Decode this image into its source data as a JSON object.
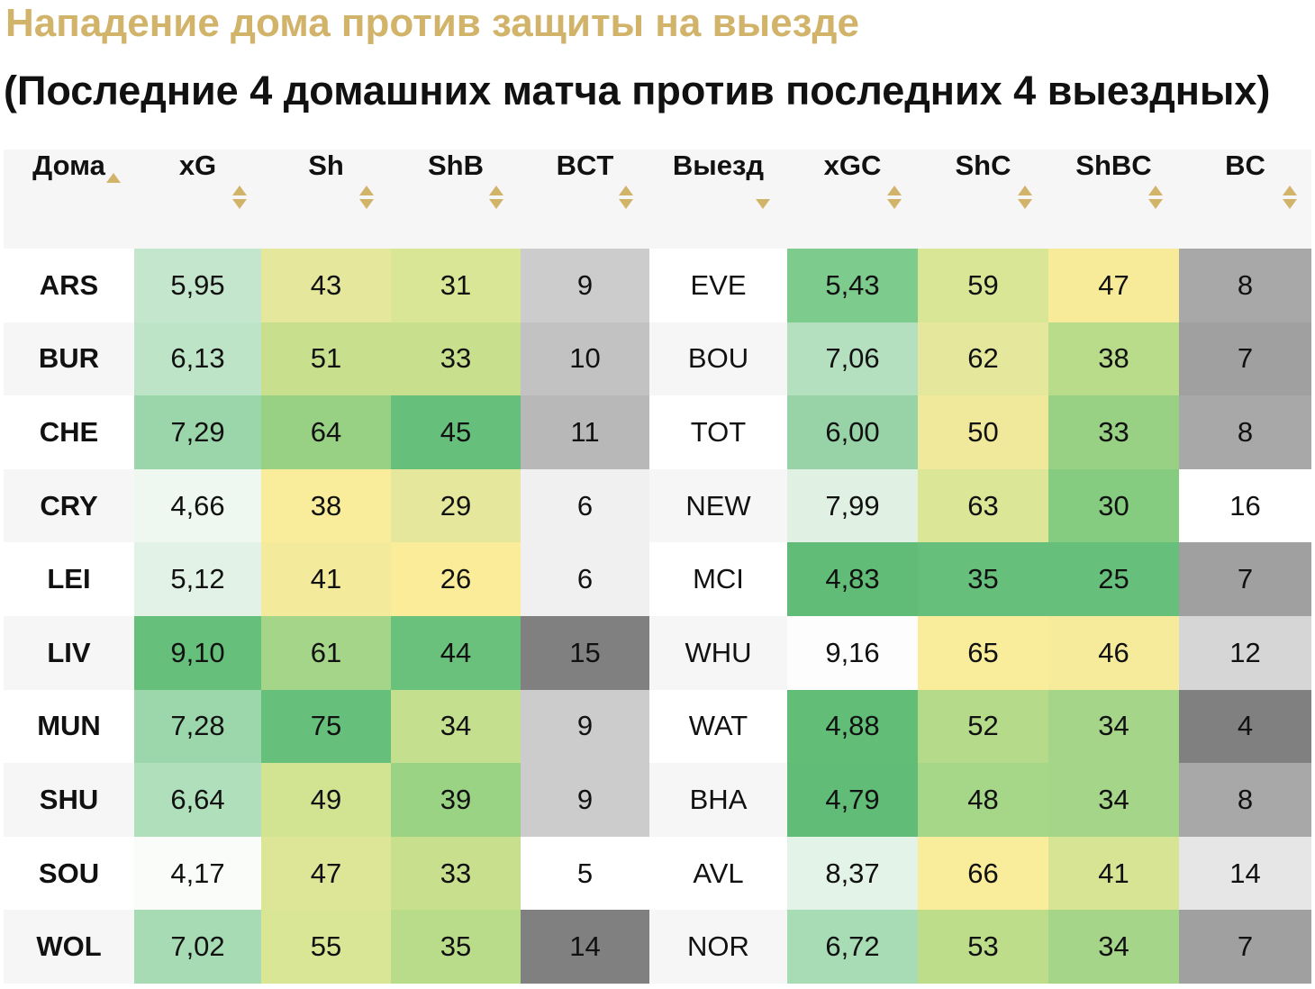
{
  "header": {
    "title": "Нападение дома против защиты на выезде",
    "subtitle": "(Последние 4 домашних матча против последних 4 выездных)"
  },
  "table": {
    "columns": [
      "Дома",
      "xG",
      "Sh",
      "ShB",
      "BCT",
      "Выезд",
      "xGC",
      "ShC",
      "ShBC",
      "BC"
    ],
    "rows": [
      [
        "ARS",
        "5,95",
        "43",
        "31",
        "9",
        "EVE",
        "5,43",
        "59",
        "47",
        "8"
      ],
      [
        "BUR",
        "6,13",
        "51",
        "33",
        "10",
        "BOU",
        "7,06",
        "62",
        "38",
        "7"
      ],
      [
        "CHE",
        "7,29",
        "64",
        "45",
        "11",
        "TOT",
        "6,00",
        "50",
        "33",
        "8"
      ],
      [
        "CRY",
        "4,66",
        "38",
        "29",
        "6",
        "NEW",
        "7,99",
        "63",
        "30",
        "16"
      ],
      [
        "LEI",
        "5,12",
        "41",
        "26",
        "6",
        "MCI",
        "4,83",
        "35",
        "25",
        "7"
      ],
      [
        "LIV",
        "9,10",
        "61",
        "44",
        "15",
        "WHU",
        "9,16",
        "65",
        "46",
        "12"
      ],
      [
        "MUN",
        "7,28",
        "75",
        "34",
        "9",
        "WAT",
        "4,88",
        "52",
        "34",
        "4"
      ],
      [
        "SHU",
        "6,64",
        "49",
        "39",
        "9",
        "BHA",
        "4,79",
        "48",
        "34",
        "8"
      ],
      [
        "SOU",
        "4,17",
        "47",
        "33",
        "5",
        "AVL",
        "8,37",
        "66",
        "41",
        "14"
      ],
      [
        "WOL",
        "7,02",
        "55",
        "35",
        "14",
        "NOR",
        "6,72",
        "53",
        "34",
        "7"
      ]
    ],
    "cell_colors": [
      [
        "#ffffff",
        "#c4e6cc",
        "#e5e89c",
        "#d8e696",
        "#cccccc",
        "#ffffff",
        "#7ecb8e",
        "#d8e696",
        "#f7eb9a",
        "#a8a8a8"
      ],
      [
        "#f6f6f6",
        "#bde4c6",
        "#c8e08e",
        "#c8e08e",
        "#c2c2c2",
        "#f6f6f6",
        "#b4e0bf",
        "#e5e89c",
        "#b8dc8a",
        "#a0a0a0"
      ],
      [
        "#ffffff",
        "#9ad6aa",
        "#98d184",
        "#66bf7a",
        "#b8b8b8",
        "#ffffff",
        "#98d3a7",
        "#f0e99b",
        "#98d184",
        "#a8a8a8"
      ],
      [
        "#f6f6f6",
        "#eef7f0",
        "#f9ec9a",
        "#e5e89c",
        "#f0f0f0",
        "#f6f6f6",
        "#e0f1e4",
        "#dbe797",
        "#86cc80",
        "#ffffff"
      ],
      [
        "#ffffff",
        "#e2f2e6",
        "#f3ea9b",
        "#faec99",
        "#f0f0f0",
        "#ffffff",
        "#60bc76",
        "#66bf7a",
        "#66bf7a",
        "#a0a0a0"
      ],
      [
        "#f6f6f6",
        "#66bf7a",
        "#a4d588",
        "#6ac17b",
        "#808080",
        "#f6f6f6",
        "#fcfdfc",
        "#f9ec9a",
        "#f6eb9a",
        "#d6d6d6"
      ],
      [
        "#ffffff",
        "#9cd7ab",
        "#66bf7a",
        "#c4df8e",
        "#cccccc",
        "#ffffff",
        "#62bd77",
        "#b4da8a",
        "#a4d588",
        "#808080"
      ],
      [
        "#f6f6f6",
        "#b0dfbc",
        "#d2e392",
        "#9ad384",
        "#cccccc",
        "#f6f6f6",
        "#60bc76",
        "#a6d688",
        "#a4d588",
        "#a8a8a8"
      ],
      [
        "#ffffff",
        "#fafcfa",
        "#dde697",
        "#c8e08e",
        "#ffffff",
        "#ffffff",
        "#e4f3e8",
        "#f9ec9a",
        "#d6e494",
        "#e6e6e6"
      ],
      [
        "#f6f6f6",
        "#a6dbb3",
        "#d8e696",
        "#b8dc8a",
        "#808080",
        "#f6f6f6",
        "#a8dcb5",
        "#bddd8b",
        "#a4d588",
        "#a0a0a0"
      ]
    ]
  }
}
